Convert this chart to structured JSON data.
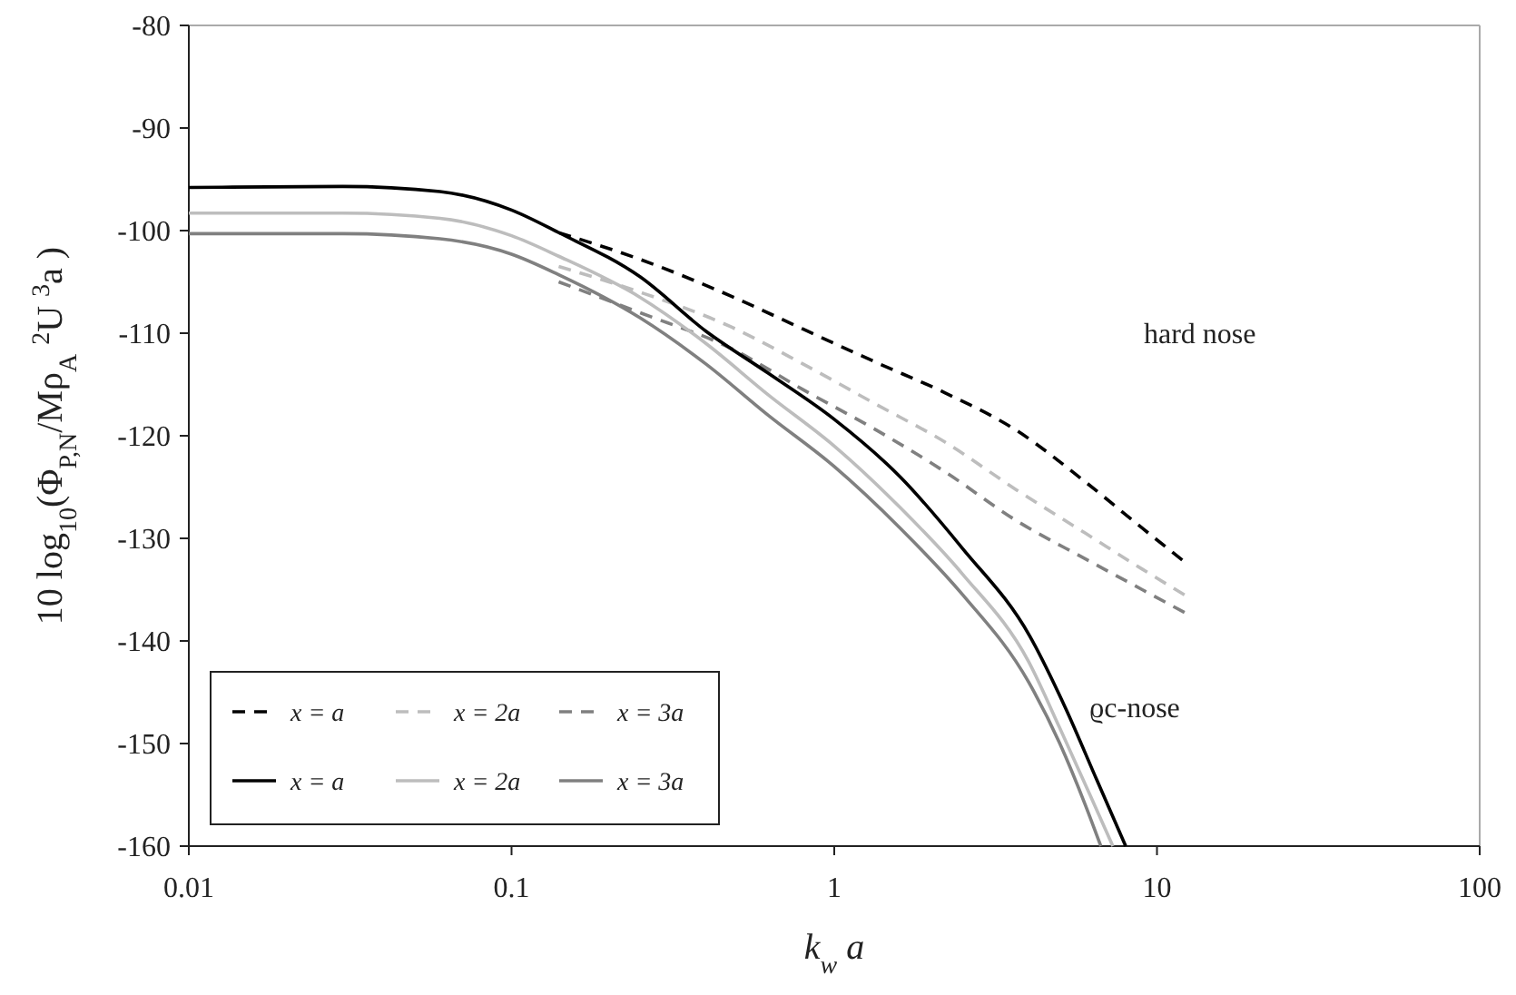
{
  "chart_data": {
    "type": "line",
    "xlabel": "k$_{w}$ a",
    "ylabel": "10 log$_{10}$(Φ$_{P,N}$/Mρ$_{A}$ $^{2}$U $^{3}$a )",
    "log": "x",
    "xlim": [
      0.01,
      100
    ],
    "xticks": [
      0.01,
      0.1,
      1,
      10,
      100
    ],
    "ylim": [
      -160,
      -80
    ],
    "yticks": [
      -160,
      -150,
      -140,
      -130,
      -120,
      -110,
      -100,
      -90,
      -80
    ],
    "grid": false,
    "legend": "bottom left",
    "series": [
      {
        "name": "x = a",
        "color": "#000000",
        "line_style": "dashed",
        "x": [
          0.14,
          0.25,
          0.48,
          0.8,
          1.36,
          2.2,
          3.68,
          6,
          9,
          12.3
        ],
        "values": [
          -100.2,
          -102.8,
          -106.4,
          -109.6,
          -112.9,
          -115.8,
          -119.5,
          -124.5,
          -129,
          -132.4
        ]
      },
      {
        "name": "x = 2a",
        "color": "#bdbdbd",
        "line_style": "dashed",
        "x": [
          0.14,
          0.25,
          0.48,
          0.8,
          1.36,
          2.2,
          3.68,
          6,
          9,
          12.3
        ],
        "values": [
          -103.5,
          -106,
          -109.4,
          -113,
          -117,
          -120.6,
          -125.3,
          -129.5,
          -133,
          -135.6
        ]
      },
      {
        "name": "x = 3a",
        "color": "#808080",
        "line_style": "dashed",
        "x": [
          0.14,
          0.25,
          0.48,
          0.8,
          1.36,
          2.2,
          3.68,
          6,
          9,
          12.3
        ],
        "values": [
          -105,
          -108,
          -111.5,
          -115.5,
          -119.5,
          -123.5,
          -128.3,
          -132,
          -135,
          -137.3
        ]
      },
      {
        "name": "x = a",
        "color": "#000000",
        "line_style": "solid",
        "x": [
          0.01,
          0.03,
          0.06,
          0.1,
          0.14,
          0.25,
          0.4,
          0.624,
          1,
          1.6,
          2.5,
          4.03,
          5.2,
          6.5,
          8
        ],
        "values": [
          -95.8,
          -95.7,
          -96.2,
          -98,
          -100.2,
          -104.5,
          -109.8,
          -113.9,
          -118.4,
          -124,
          -131,
          -139.5,
          -146.5,
          -153.5,
          -160
        ]
      },
      {
        "name": "x = 2a",
        "color": "#bdbdbd",
        "line_style": "solid",
        "x": [
          0.01,
          0.03,
          0.06,
          0.1,
          0.14,
          0.25,
          0.4,
          0.624,
          1,
          1.6,
          2.5,
          4,
          5,
          6.2,
          7.3
        ],
        "values": [
          -98.3,
          -98.3,
          -98.8,
          -100.5,
          -102.5,
          -106.5,
          -111,
          -116,
          -121,
          -127,
          -133.5,
          -142,
          -148.5,
          -155,
          -160
        ]
      },
      {
        "name": "x = 3a",
        "color": "#808080",
        "line_style": "solid",
        "x": [
          0.01,
          0.03,
          0.06,
          0.1,
          0.14,
          0.25,
          0.4,
          0.624,
          1,
          1.6,
          2.5,
          4,
          5,
          6,
          6.7
        ],
        "values": [
          -100.3,
          -100.3,
          -100.8,
          -102.3,
          -104.3,
          -108.5,
          -113,
          -118,
          -123,
          -129,
          -135.5,
          -144,
          -150,
          -156,
          -160
        ]
      }
    ],
    "annotations": [
      "hard nose",
      "ϱc-nose"
    ]
  }
}
